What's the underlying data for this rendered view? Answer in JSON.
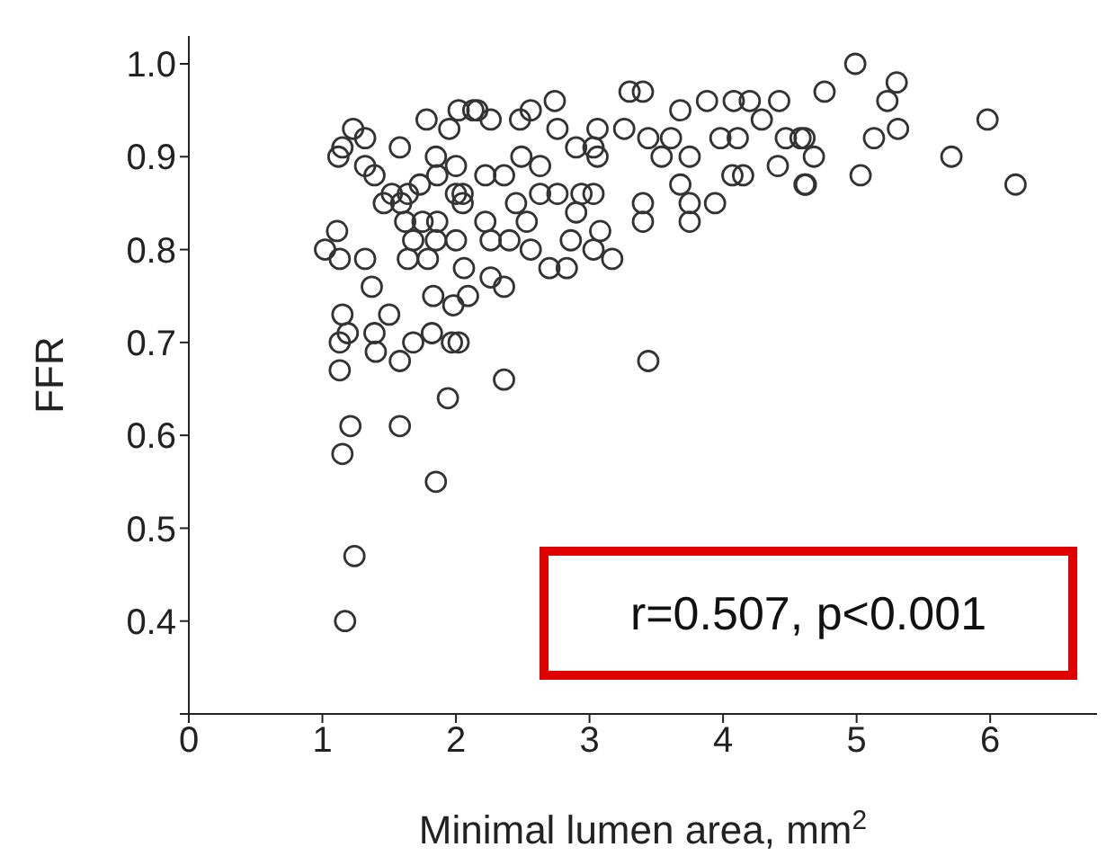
{
  "chart_data": {
    "type": "scatter",
    "xlabel": "Minimal lumen area, mm$^{2}$",
    "ylabel": "FFR",
    "annotations": [
      "r=0.507, p<0.001"
    ],
    "xlim": [
      0,
      6.8
    ],
    "xticks": [
      0,
      1,
      2,
      3,
      4,
      5,
      6
    ],
    "ylim": [
      0.3,
      1.03
    ],
    "yticks": [
      {
        "value": 0.3,
        "label": null
      },
      0.4,
      0.5,
      0.6,
      0.7,
      0.8,
      0.9,
      {
        "value": 1,
        "label": "1.0"
      }
    ],
    "grid": false,
    "legend": false,
    "marker": "circle",
    "series": [
      {
        "color": "#333333",
        "x": [
          1.17,
          1.24,
          1.15,
          1.85,
          1.21,
          1.58,
          1.94,
          2.36,
          3.44,
          1.23,
          1.32,
          1.12,
          1.15,
          1.58,
          1.32,
          1.39,
          1.46,
          1.59,
          1.11,
          1.02,
          1.13,
          1.32,
          1.64,
          1.79,
          1.37,
          1.15,
          1.19,
          1.13,
          1.39,
          1.5,
          1.4,
          1.58,
          1.68,
          1.82,
          1.97,
          1.13,
          1.83,
          1.98,
          2.09,
          2.06,
          1.78,
          2.02,
          2.13,
          1.95,
          1.85,
          2.0,
          1.52,
          1.64,
          1.73,
          1.86,
          2.0,
          2.05,
          1.62,
          1.75,
          1.86,
          2.0,
          1.68,
          1.85,
          2.16,
          2.26,
          2.48,
          2.56,
          2.74,
          3.06,
          3.26,
          3.3,
          3.4,
          3.68,
          3.88,
          4.08,
          4.2,
          4.42,
          4.29,
          4.58,
          3.98,
          4.11,
          4.61,
          4.41,
          4.07,
          4.15,
          3.94,
          3.75,
          3.75,
          3.68,
          3.54,
          3.61,
          3.75,
          3.44,
          3.4,
          3.4,
          3.06,
          3.03,
          2.94,
          2.76,
          2.63,
          2.9,
          3.08,
          3.17,
          2.86,
          3.03,
          2.83,
          2.7,
          2.56,
          2.53,
          2.4,
          2.45,
          2.76,
          2.9,
          3.03,
          2.63,
          2.36,
          2.49,
          2.22,
          2.05,
          2.22,
          2.26,
          2.36,
          2.26,
          2.02,
          4.99,
          5.3,
          5.23,
          4.76,
          5.31,
          5.13,
          5.98,
          5.71,
          6.19,
          5.03,
          4.62,
          4.68,
          4.47,
          4.61
        ],
        "values": [
          0.4,
          0.47,
          0.58,
          0.55,
          0.61,
          0.61,
          0.64,
          0.66,
          0.68,
          0.93,
          0.92,
          0.9,
          0.91,
          0.91,
          0.89,
          0.88,
          0.85,
          0.85,
          0.82,
          0.8,
          0.79,
          0.79,
          0.79,
          0.79,
          0.76,
          0.73,
          0.71,
          0.7,
          0.71,
          0.73,
          0.69,
          0.68,
          0.7,
          0.71,
          0.7,
          0.67,
          0.75,
          0.74,
          0.75,
          0.78,
          0.94,
          0.95,
          0.95,
          0.93,
          0.9,
          0.89,
          0.86,
          0.86,
          0.87,
          0.88,
          0.86,
          0.85,
          0.83,
          0.83,
          0.83,
          0.81,
          0.81,
          0.81,
          0.95,
          0.94,
          0.94,
          0.95,
          0.96,
          0.93,
          0.93,
          0.97,
          0.97,
          0.95,
          0.96,
          0.96,
          0.96,
          0.96,
          0.94,
          0.92,
          0.92,
          0.92,
          0.87,
          0.89,
          0.88,
          0.88,
          0.85,
          0.83,
          0.85,
          0.87,
          0.9,
          0.92,
          0.9,
          0.92,
          0.85,
          0.83,
          0.9,
          0.86,
          0.86,
          0.86,
          0.86,
          0.84,
          0.82,
          0.79,
          0.81,
          0.8,
          0.78,
          0.78,
          0.8,
          0.83,
          0.81,
          0.85,
          0.93,
          0.91,
          0.91,
          0.89,
          0.88,
          0.9,
          0.88,
          0.86,
          0.83,
          0.81,
          0.76,
          0.77,
          0.7,
          1.0,
          0.98,
          0.96,
          0.97,
          0.93,
          0.92,
          0.94,
          0.9,
          0.87,
          0.88,
          0.87,
          0.9,
          0.92,
          0.92
        ]
      }
    ]
  }
}
